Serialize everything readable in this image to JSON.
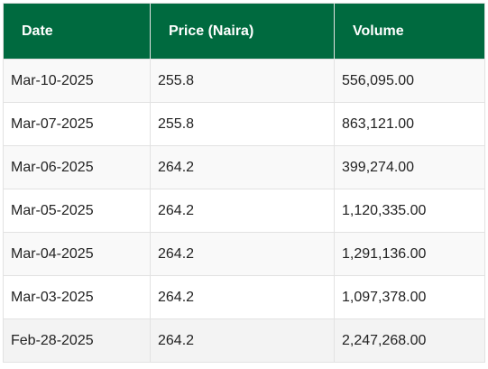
{
  "table": {
    "headers": [
      "Date",
      "Price (Naira)",
      "Volume"
    ],
    "rows": [
      {
        "date": "Mar-10-2025",
        "price": "255.8",
        "volume": "556,095.00"
      },
      {
        "date": "Mar-07-2025",
        "price": "255.8",
        "volume": "863,121.00"
      },
      {
        "date": "Mar-06-2025",
        "price": "264.2",
        "volume": "399,274.00"
      },
      {
        "date": "Mar-05-2025",
        "price": "264.2",
        "volume": "1,120,335.00"
      },
      {
        "date": "Mar-04-2025",
        "price": "264.2",
        "volume": "1,291,136.00"
      },
      {
        "date": "Mar-03-2025",
        "price": "264.2",
        "volume": "1,097,378.00"
      },
      {
        "date": "Feb-28-2025",
        "price": "264.2",
        "volume": "2,247,268.00"
      }
    ]
  },
  "colors": {
    "header_bg": "#006a3f",
    "header_text": "#ffffff",
    "cell_text": "#222222",
    "border": "#e2e2e2"
  }
}
